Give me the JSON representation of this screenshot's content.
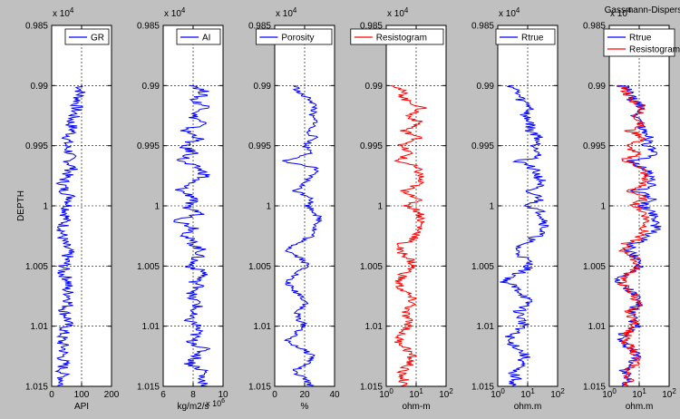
{
  "figure": {
    "background": "#c0c0c0",
    "axes_background": "#ffffff"
  },
  "chart_data": [
    {
      "type": "line",
      "id": "gr",
      "xlabel": "API",
      "ylabel": "DEPTH",
      "xlim": [
        0,
        200
      ],
      "xscale": "linear",
      "xticks": [
        0,
        100,
        200
      ],
      "xtick_labels": [
        "0",
        "100",
        "200"
      ],
      "ylim": [
        0.985,
        1.015
      ],
      "y_multiplier": "x 10^4",
      "ytick_labels": [
        "0.985",
        "0.99",
        "0.995",
        "1",
        "1.005",
        "1.01",
        "1.015"
      ],
      "grid": true,
      "legend": "top-right",
      "series": [
        {
          "name": "GR",
          "color": "#0000ff",
          "amplitude": 22,
          "x": [
            100,
            95,
            88,
            82,
            74,
            63,
            72,
            55,
            48,
            62,
            58,
            70,
            48,
            38,
            42,
            68,
            55,
            50,
            44,
            38,
            35,
            40,
            55,
            50,
            42,
            35,
            60,
            48,
            62,
            58,
            42,
            55,
            48,
            38,
            32,
            42,
            36,
            40,
            35,
            38,
            32
          ]
        }
      ]
    },
    {
      "type": "line",
      "id": "ai",
      "xlabel": "kg/m2/s",
      "ylabel": "",
      "xlim": [
        6,
        10
      ],
      "xscale": "linear",
      "xticks": [
        6,
        8,
        10
      ],
      "xtick_labels": [
        "6",
        "8",
        "10"
      ],
      "x_multiplier": "x 10^6",
      "ylim": [
        0.985,
        1.015
      ],
      "y_multiplier": "x 10^4",
      "ytick_labels": [
        "0.985",
        "0.99",
        "0.995",
        "1",
        "1.005",
        "1.01",
        "1.015"
      ],
      "grid": true,
      "legend": "top-right",
      "series": [
        {
          "name": "AI",
          "color": "#0000ff",
          "amplitude": 0.45,
          "x": [
            8.2,
            8.8,
            8.0,
            9.1,
            7.9,
            8.7,
            7.4,
            8.5,
            7.2,
            8.1,
            7.0,
            8.4,
            8.9,
            7.6,
            7.1,
            8.3,
            7.3,
            8.6,
            7.0,
            8.2,
            7.5,
            8.0,
            8.6,
            8.2,
            7.8,
            8.9,
            8.1,
            8.5,
            7.7,
            8.4,
            8.0,
            7.6,
            8.3,
            8.2,
            7.9,
            8.7,
            8.3,
            7.8,
            8.8,
            8.5,
            9.0
          ]
        }
      ]
    },
    {
      "type": "line",
      "id": "porosity",
      "xlabel": "%",
      "ylabel": "",
      "xlim": [
        0,
        40
      ],
      "xscale": "linear",
      "xticks": [
        0,
        20,
        40
      ],
      "xtick_labels": [
        "0",
        "20",
        "40"
      ],
      "ylim": [
        0.985,
        1.015
      ],
      "y_multiplier": "x 10^4",
      "ytick_labels": [
        "0.985",
        "0.99",
        "0.995",
        "1",
        "1.005",
        "1.01",
        "1.015"
      ],
      "grid": true,
      "legend": "top-right",
      "series": [
        {
          "name": "Porosity",
          "color": "#0000ff",
          "amplitude": 2.5,
          "x": [
            14,
            16,
            25,
            27,
            24,
            28,
            22,
            27,
            20,
            26,
            5,
            28,
            24,
            20,
            14,
            26,
            22,
            28,
            30,
            27,
            25,
            14,
            9,
            18,
            22,
            15,
            8,
            11,
            18,
            22,
            14,
            16,
            20,
            14,
            8,
            18,
            26,
            22,
            12,
            20,
            24
          ]
        }
      ]
    },
    {
      "type": "line",
      "id": "resistogram",
      "xlabel": "ohm-m",
      "ylabel": "",
      "xlim": [
        1,
        100
      ],
      "xscale": "log",
      "xticks": [
        1,
        10,
        100
      ],
      "xtick_labels": [
        "10^0",
        "10^1",
        "10^2"
      ],
      "ylim": [
        0.985,
        1.015
      ],
      "y_multiplier": "x 10^4",
      "ytick_labels": [
        "0.985",
        "0.99",
        "0.995",
        "1",
        "1.005",
        "1.01",
        "1.015"
      ],
      "grid": true,
      "legend": "top-right",
      "series": [
        {
          "name": "Resistogram",
          "color": "#ff0000",
          "amplitude": 0.18,
          "x": [
            2.2,
            3.5,
            4.5,
            15,
            5,
            13,
            3,
            12,
            2.5,
            6,
            2,
            10,
            14,
            12,
            3,
            12,
            5,
            14,
            15,
            13,
            11,
            3,
            2.5,
            6,
            8,
            4,
            2.5,
            3,
            6,
            8,
            4,
            5,
            6,
            3,
            2.5,
            5,
            7,
            6,
            3,
            4,
            3
          ]
        }
      ]
    },
    {
      "type": "line",
      "id": "rtrue",
      "xlabel": "ohm.m",
      "ylabel": "",
      "xlim": [
        1,
        100
      ],
      "xscale": "log",
      "xticks": [
        1,
        10,
        100
      ],
      "xtick_labels": [
        "10^0",
        "10^1",
        "10^2"
      ],
      "ylim": [
        0.985,
        1.015
      ],
      "y_multiplier": "x 10^4",
      "ytick_labels": [
        "0.985",
        "0.99",
        "0.995",
        "1",
        "1.005",
        "1.01",
        "1.015"
      ],
      "grid": true,
      "legend": "top-right",
      "series": [
        {
          "name": "Rtrue",
          "color": "#0000ff",
          "amplitude": 0.2,
          "x": [
            3,
            4.5,
            6,
            14,
            7,
            13,
            12,
            25,
            18,
            30,
            4,
            15,
            22,
            30,
            6,
            28,
            10,
            30,
            40,
            35,
            20,
            6,
            4,
            8,
            12,
            4.5,
            1.5,
            4,
            8,
            10,
            5,
            6,
            8,
            3,
            2,
            5,
            8,
            6,
            3,
            4,
            3
          ]
        }
      ]
    },
    {
      "type": "line",
      "id": "comparison",
      "title": "Gassmann-Dispersed",
      "xlabel": "ohm.m",
      "ylabel": "",
      "xlim": [
        1,
        100
      ],
      "xscale": "log",
      "xticks": [
        1,
        10,
        100
      ],
      "xtick_labels": [
        "10^0",
        "10^1",
        "10^2"
      ],
      "ylim": [
        0.985,
        1.015
      ],
      "y_multiplier": "x 10^4",
      "ytick_labels": [
        "0.985",
        "0.99",
        "0.995",
        "1",
        "1.005",
        "1.01",
        "1.015"
      ],
      "grid": true,
      "legend": "top-right",
      "series": [
        {
          "name": "Rtrue",
          "color": "#0000ff",
          "amplitude": 0.2,
          "x": [
            3,
            4.5,
            6,
            14,
            7,
            13,
            12,
            25,
            18,
            30,
            4,
            15,
            22,
            30,
            6,
            28,
            10,
            30,
            40,
            35,
            20,
            6,
            4,
            8,
            12,
            4.5,
            1.5,
            4,
            8,
            10,
            5,
            6,
            8,
            3,
            2,
            5,
            8,
            6,
            3,
            4,
            3
          ]
        },
        {
          "name": "Resistogram",
          "color": "#ff0000",
          "amplitude": 0.18,
          "x": [
            2.5,
            3.8,
            5,
            15,
            6,
            14,
            4,
            14,
            3,
            8,
            2.5,
            12,
            16,
            14,
            4,
            14,
            6,
            16,
            18,
            15,
            12,
            3.5,
            3,
            7,
            9,
            4.5,
            2.5,
            3.5,
            7,
            9,
            5,
            6,
            7,
            4,
            3,
            6,
            8,
            7,
            3.5,
            5,
            3.5
          ]
        }
      ]
    }
  ]
}
